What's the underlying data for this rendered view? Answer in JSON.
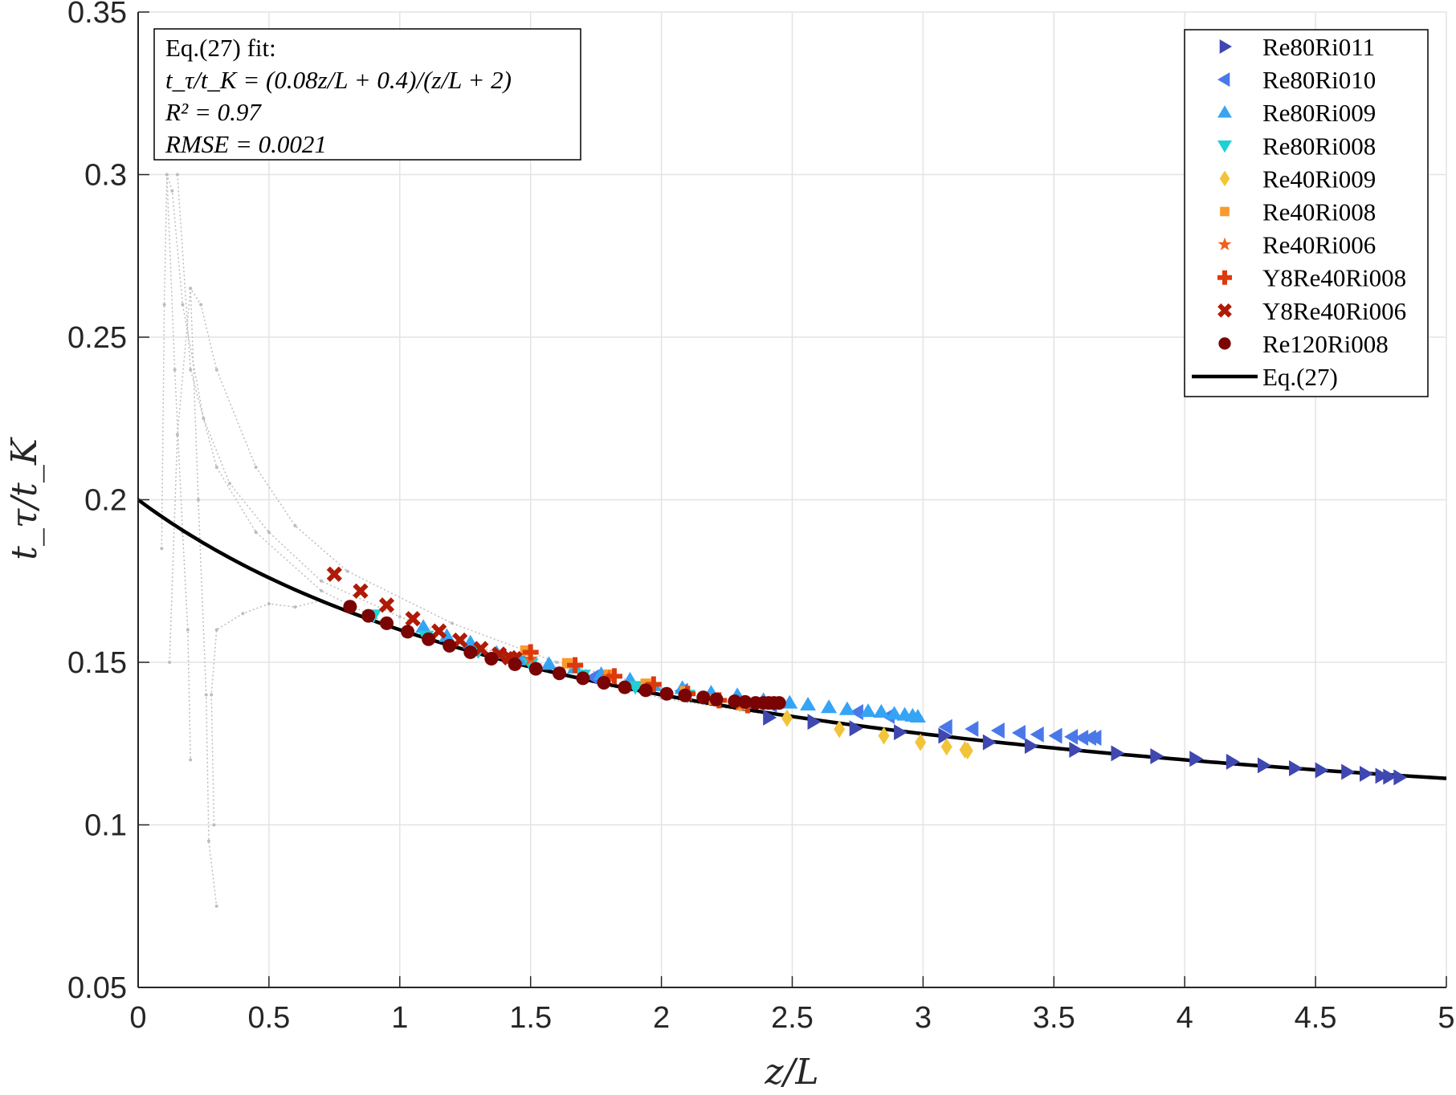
{
  "chart_data": {
    "type": "scatter",
    "xlabel": "z/L",
    "ylabel": "t_τ/t_K",
    "xlim": [
      0,
      5
    ],
    "ylim": [
      0.05,
      0.35
    ],
    "xticks": [
      0,
      0.5,
      1,
      1.5,
      2,
      2.5,
      3,
      3.5,
      4,
      4.5,
      5
    ],
    "xtick_labels": [
      "0",
      "0.5",
      "1",
      "1.5",
      "2",
      "2.5",
      "3",
      "3.5",
      "4",
      "4.5",
      "5"
    ],
    "yticks": [
      0.05,
      0.1,
      0.15,
      0.2,
      0.25,
      0.3,
      0.35
    ],
    "ytick_labels": [
      "0.05",
      "0.1",
      "0.15",
      "0.2",
      "0.25",
      "0.3",
      "0.35"
    ],
    "grid": true,
    "legend_position": "top-right",
    "annotation": {
      "line1": "Eq.(27) fit:",
      "line2": "t_τ/t_K = (0.08z/L + 0.4)/(z/L + 2)",
      "line3": "R² = 0.97",
      "line4": "RMSE = 0.0021"
    },
    "fit": {
      "name": "Eq.(27)",
      "a": 0.08,
      "b": 0.4,
      "c": 2,
      "color": "#000000"
    },
    "series": [
      {
        "name": "Re80Ri011",
        "marker": "triangle-right",
        "color": "#3f48b0",
        "points": [
          [
            2.41,
            0.133
          ],
          [
            2.58,
            0.1317
          ],
          [
            2.74,
            0.1297
          ],
          [
            2.91,
            0.1285
          ],
          [
            3.08,
            0.1274
          ],
          [
            3.25,
            0.1254
          ],
          [
            3.41,
            0.1243
          ],
          [
            3.58,
            0.1231
          ],
          [
            3.74,
            0.122
          ],
          [
            3.89,
            0.1211
          ],
          [
            4.04,
            0.1203
          ],
          [
            4.18,
            0.1194
          ],
          [
            4.3,
            0.1183
          ],
          [
            4.42,
            0.1174
          ],
          [
            4.52,
            0.1168
          ],
          [
            4.62,
            0.1163
          ],
          [
            4.69,
            0.1157
          ],
          [
            4.75,
            0.1151
          ],
          [
            4.78,
            0.1148
          ],
          [
            4.82,
            0.1146
          ]
        ]
      },
      {
        "name": "Re80Ri010",
        "marker": "triangle-left",
        "color": "#4a78e8",
        "points": [
          [
            1.74,
            0.1454
          ],
          [
            2.08,
            0.1412
          ],
          [
            2.42,
            0.1369
          ],
          [
            2.75,
            0.1347
          ],
          [
            2.87,
            0.1335
          ],
          [
            3.09,
            0.1301
          ],
          [
            3.19,
            0.1295
          ],
          [
            3.29,
            0.129
          ],
          [
            3.37,
            0.1283
          ],
          [
            3.44,
            0.1278
          ],
          [
            3.51,
            0.1274
          ],
          [
            3.57,
            0.1271
          ],
          [
            3.61,
            0.1268
          ],
          [
            3.64,
            0.1268
          ],
          [
            3.66,
            0.1268
          ]
        ]
      },
      {
        "name": "Re80Ri009",
        "marker": "triangle-up",
        "color": "#35a4f5",
        "points": [
          [
            1.09,
            0.1608
          ],
          [
            1.18,
            0.158
          ],
          [
            1.27,
            0.156
          ],
          [
            1.37,
            0.1528
          ],
          [
            1.47,
            0.1508
          ],
          [
            1.57,
            0.1494
          ],
          [
            1.67,
            0.1483
          ],
          [
            1.77,
            0.1463
          ],
          [
            1.88,
            0.1446
          ],
          [
            1.97,
            0.1429
          ],
          [
            2.08,
            0.142
          ],
          [
            2.19,
            0.1406
          ],
          [
            2.29,
            0.1398
          ],
          [
            2.39,
            0.1383
          ],
          [
            2.49,
            0.1375
          ],
          [
            2.56,
            0.1369
          ],
          [
            2.64,
            0.1361
          ],
          [
            2.71,
            0.1355
          ],
          [
            2.79,
            0.1349
          ],
          [
            2.84,
            0.1347
          ],
          [
            2.89,
            0.1341
          ],
          [
            2.93,
            0.1338
          ],
          [
            2.96,
            0.1335
          ],
          [
            2.98,
            0.1332
          ]
        ]
      },
      {
        "name": "Re80Ri008",
        "marker": "triangle-down",
        "color": "#1fd0d5",
        "points": [
          [
            0.9,
            0.1645
          ],
          [
            1.1,
            0.158
          ],
          [
            1.3,
            0.1535
          ],
          [
            1.5,
            0.1495
          ],
          [
            1.7,
            0.146
          ],
          [
            1.9,
            0.1425
          ],
          [
            2.1,
            0.1398
          ],
          [
            2.3,
            0.1372
          ]
        ]
      },
      {
        "name": "Re40Ri009",
        "marker": "diamond",
        "color": "#f2c43a",
        "points": [
          [
            2.48,
            0.1328
          ],
          [
            2.68,
            0.1294
          ],
          [
            2.85,
            0.1274
          ],
          [
            2.99,
            0.1254
          ],
          [
            3.09,
            0.124
          ],
          [
            3.16,
            0.1231
          ],
          [
            3.17,
            0.1228
          ]
        ]
      },
      {
        "name": "Re40Ri008",
        "marker": "square",
        "color": "#fa9a2e",
        "points": [
          [
            1.48,
            0.1536
          ],
          [
            1.64,
            0.1497
          ],
          [
            1.8,
            0.1462
          ],
          [
            1.94,
            0.1434
          ],
          [
            2.09,
            0.1411
          ],
          [
            2.2,
            0.1385
          ],
          [
            2.31,
            0.1368
          ]
        ]
      },
      {
        "name": "Re40Ri006",
        "marker": "star",
        "color": "#f0611c",
        "points": [
          [
            1.5,
            0.151
          ],
          [
            1.8,
            0.1455
          ],
          [
            2.1,
            0.14
          ],
          [
            2.3,
            0.137
          ]
        ]
      },
      {
        "name": "Y8Re40Ri008",
        "marker": "plus",
        "color": "#dc3a0b",
        "points": [
          [
            1.5,
            0.1531
          ],
          [
            1.67,
            0.1491
          ],
          [
            1.82,
            0.1457
          ],
          [
            1.97,
            0.1432
          ],
          [
            2.1,
            0.1403
          ],
          [
            2.22,
            0.1383
          ],
          [
            2.33,
            0.1368
          ]
        ]
      },
      {
        "name": "Y8Re40Ri006",
        "marker": "x",
        "color": "#b01a06",
        "points": [
          [
            0.75,
            0.1771
          ],
          [
            0.85,
            0.1719
          ],
          [
            0.95,
            0.1676
          ],
          [
            1.05,
            0.1634
          ],
          [
            1.15,
            0.1596
          ],
          [
            1.23,
            0.1568
          ],
          [
            1.31,
            0.1542
          ],
          [
            1.38,
            0.1525
          ],
          [
            1.42,
            0.1514
          ],
          [
            1.44,
            0.1511
          ]
        ]
      },
      {
        "name": "Re120Ri008",
        "marker": "circle",
        "color": "#7a0403",
        "points": [
          [
            0.81,
            0.1671
          ],
          [
            0.88,
            0.1643
          ],
          [
            0.95,
            0.162
          ],
          [
            1.03,
            0.1594
          ],
          [
            1.11,
            0.1571
          ],
          [
            1.19,
            0.1551
          ],
          [
            1.27,
            0.1531
          ],
          [
            1.35,
            0.1511
          ],
          [
            1.44,
            0.1494
          ],
          [
            1.52,
            0.148
          ],
          [
            1.61,
            0.1466
          ],
          [
            1.7,
            0.1451
          ],
          [
            1.78,
            0.1437
          ],
          [
            1.86,
            0.1423
          ],
          [
            1.94,
            0.1414
          ],
          [
            2.02,
            0.1403
          ],
          [
            2.09,
            0.1398
          ],
          [
            2.16,
            0.1392
          ],
          [
            2.21,
            0.1386
          ],
          [
            2.28,
            0.138
          ],
          [
            2.32,
            0.1378
          ],
          [
            2.36,
            0.1375
          ],
          [
            2.39,
            0.1375
          ],
          [
            2.41,
            0.1375
          ],
          [
            2.43,
            0.1375
          ],
          [
            2.45,
            0.1375
          ]
        ]
      }
    ],
    "transients": {
      "color": "#bdbdbd",
      "lines": [
        [
          [
            0.09,
            0.185
          ],
          [
            0.1,
            0.26
          ],
          [
            0.11,
            0.3
          ],
          [
            0.13,
            0.295
          ],
          [
            0.17,
            0.26
          ],
          [
            0.25,
            0.225
          ],
          [
            0.35,
            0.205
          ],
          [
            0.5,
            0.19
          ],
          [
            0.7,
            0.175
          ],
          [
            1.0,
            0.164
          ],
          [
            1.4,
            0.152
          ],
          [
            1.8,
            0.145
          ]
        ],
        [
          [
            0.12,
            0.15
          ],
          [
            0.15,
            0.22
          ],
          [
            0.2,
            0.265
          ],
          [
            0.24,
            0.26
          ],
          [
            0.3,
            0.24
          ],
          [
            0.45,
            0.21
          ],
          [
            0.6,
            0.192
          ],
          [
            0.8,
            0.178
          ],
          [
            1.2,
            0.162
          ],
          [
            1.6,
            0.15
          ],
          [
            2.0,
            0.142
          ]
        ],
        [
          [
            0.11,
            0.3
          ],
          [
            0.14,
            0.24
          ],
          [
            0.17,
            0.19
          ],
          [
            0.19,
            0.16
          ],
          [
            0.2,
            0.12
          ]
        ],
        [
          [
            0.2,
            0.265
          ],
          [
            0.23,
            0.2
          ],
          [
            0.26,
            0.14
          ],
          [
            0.27,
            0.095
          ],
          [
            0.3,
            0.075
          ]
        ],
        [
          [
            0.29,
            0.1
          ],
          [
            0.28,
            0.14
          ],
          [
            0.3,
            0.16
          ],
          [
            0.4,
            0.165
          ],
          [
            0.5,
            0.168
          ],
          [
            0.6,
            0.167
          ],
          [
            0.7,
            0.169
          ]
        ],
        [
          [
            0.15,
            0.3
          ],
          [
            0.2,
            0.24
          ],
          [
            0.3,
            0.21
          ],
          [
            0.45,
            0.19
          ],
          [
            0.7,
            0.172
          ],
          [
            1.0,
            0.16
          ],
          [
            1.5,
            0.148
          ],
          [
            2.0,
            0.139
          ],
          [
            2.4,
            0.134
          ]
        ]
      ]
    }
  }
}
